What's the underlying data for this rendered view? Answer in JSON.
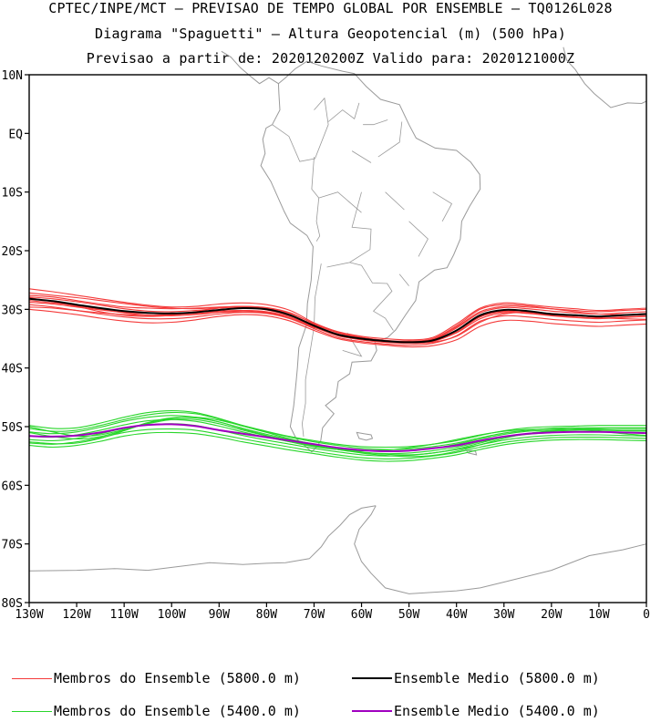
{
  "header": {
    "line1": "CPTEC/INPE/MCT – PREVISAO DE TEMPO GLOBAL POR ENSEMBLE – TQ0126L028",
    "line2": "Diagrama \"Spaguetti\" – Altura Geopotencial (m) (500 hPa)",
    "line3": "Previsao a partir de: 2020120200Z  Valido para: 2020121000Z"
  },
  "map": {
    "lat_labels": [
      "10N",
      "EQ",
      "10S",
      "20S",
      "30S",
      "40S",
      "50S",
      "60S",
      "70S",
      "80S"
    ],
    "lat_values": [
      10,
      0,
      -10,
      -20,
      -30,
      -40,
      -50,
      -60,
      -70,
      -80
    ],
    "lon_labels": [
      "130W",
      "120W",
      "110W",
      "100W",
      "90W",
      "80W",
      "70W",
      "60W",
      "50W",
      "40W",
      "30W",
      "20W",
      "10W",
      "0"
    ],
    "lon_values": [
      -130,
      -120,
      -110,
      -100,
      -90,
      -80,
      -70,
      -60,
      -50,
      -40,
      -30,
      -20,
      -10,
      0
    ],
    "xlim": [
      -130,
      0
    ],
    "ylim": [
      -80,
      10
    ],
    "coast_color": "#9a9a9a"
  },
  "chart_data": {
    "type": "line",
    "x": [
      -130,
      -125,
      -120,
      -115,
      -110,
      -105,
      -100,
      -95,
      -90,
      -85,
      -80,
      -75,
      -70,
      -65,
      -60,
      -55,
      -50,
      -45,
      -40,
      -35,
      -30,
      -25,
      -20,
      -15,
      -10,
      -5,
      0
    ],
    "series": [
      {
        "name": "Ensemble Medio (5800.0 m)",
        "color": "#000000",
        "values": [
          -28.2,
          -28.6,
          -29.2,
          -29.8,
          -30.3,
          -30.6,
          -30.7,
          -30.5,
          -30.1,
          -29.8,
          -30.0,
          -31.0,
          -32.8,
          -34.3,
          -35.0,
          -35.4,
          -35.6,
          -35.3,
          -33.6,
          -31.0,
          -30.1,
          -30.3,
          -30.8,
          -31.0,
          -31.2,
          -31.0,
          -30.8
        ]
      },
      {
        "name": "Ensemble Medio (5400.0 m)",
        "color": "#a000c0",
        "values": [
          -51.6,
          -51.7,
          -51.5,
          -51.0,
          -50.2,
          -49.7,
          -49.6,
          -49.9,
          -50.6,
          -51.2,
          -51.8,
          -52.4,
          -53.0,
          -53.6,
          -54.0,
          -54.2,
          -54.1,
          -53.7,
          -53.2,
          -52.4,
          -51.7,
          -51.2,
          -51.0,
          -50.9,
          -50.9,
          -51.0,
          -51.1
        ]
      }
    ],
    "member_groups": [
      {
        "name": "Membros do Ensemble (5800.0 m)",
        "color": "#f43a3a",
        "members": [
          [
            -26.5,
            -27.0,
            -27.6,
            -28.2,
            -28.8,
            -29.3,
            -29.6,
            -29.5,
            -29.1,
            -28.9,
            -29.2,
            -30.2,
            -32.3,
            -33.8,
            -34.6,
            -35.0,
            -35.2,
            -34.8,
            -32.5,
            -29.8,
            -28.9,
            -29.2,
            -29.6,
            -29.9,
            -30.2,
            -30.0,
            -29.8
          ],
          [
            -27.2,
            -27.6,
            -28.0,
            -28.5,
            -29.0,
            -29.5,
            -29.8,
            -29.9,
            -29.7,
            -29.5,
            -29.8,
            -30.7,
            -32.4,
            -33.9,
            -34.8,
            -35.3,
            -35.5,
            -35.1,
            -33.0,
            -30.4,
            -29.5,
            -29.6,
            -29.9,
            -30.2,
            -30.4,
            -30.2,
            -30.0
          ],
          [
            -27.9,
            -28.2,
            -28.7,
            -29.3,
            -29.9,
            -30.3,
            -30.4,
            -30.2,
            -29.8,
            -29.6,
            -29.9,
            -30.9,
            -32.7,
            -34.2,
            -35.0,
            -35.4,
            -35.6,
            -35.2,
            -33.2,
            -30.6,
            -29.7,
            -29.9,
            -30.3,
            -30.6,
            -30.8,
            -30.6,
            -30.4
          ],
          [
            -28.5,
            -28.9,
            -29.4,
            -30.0,
            -30.6,
            -31.0,
            -31.1,
            -30.9,
            -30.5,
            -30.2,
            -30.4,
            -31.3,
            -33.0,
            -34.5,
            -35.2,
            -35.6,
            -35.8,
            -35.5,
            -33.9,
            -31.3,
            -30.4,
            -30.6,
            -31.0,
            -31.3,
            -31.5,
            -31.3,
            -31.1
          ],
          [
            -29.2,
            -29.6,
            -30.2,
            -30.8,
            -31.3,
            -31.6,
            -31.6,
            -31.3,
            -30.8,
            -30.5,
            -30.7,
            -31.6,
            -33.3,
            -34.8,
            -35.5,
            -35.9,
            -36.1,
            -35.8,
            -34.5,
            -32.0,
            -31.1,
            -31.3,
            -31.7,
            -32.0,
            -32.2,
            -32.0,
            -31.8
          ],
          [
            -30.0,
            -30.4,
            -30.9,
            -31.5,
            -32.0,
            -32.3,
            -32.2,
            -31.8,
            -31.2,
            -30.9,
            -31.1,
            -32.0,
            -33.6,
            -35.0,
            -35.7,
            -36.1,
            -36.4,
            -36.2,
            -35.2,
            -32.9,
            -31.9,
            -32.0,
            -32.4,
            -32.7,
            -32.9,
            -32.7,
            -32.5
          ],
          [
            -28.0,
            -28.7,
            -29.5,
            -30.4,
            -31.0,
            -31.2,
            -31.0,
            -30.4,
            -29.8,
            -29.6,
            -30.1,
            -31.1,
            -32.6,
            -33.9,
            -34.8,
            -35.3,
            -35.7,
            -35.6,
            -34.6,
            -32.2,
            -30.8,
            -30.5,
            -30.7,
            -31.0,
            -31.4,
            -31.6,
            -31.7
          ],
          [
            -27.6,
            -27.9,
            -28.5,
            -29.1,
            -29.6,
            -29.8,
            -29.9,
            -29.8,
            -29.6,
            -29.5,
            -29.7,
            -30.6,
            -32.5,
            -34.0,
            -34.9,
            -35.3,
            -35.4,
            -35.0,
            -32.8,
            -30.0,
            -29.2,
            -29.4,
            -29.9,
            -30.4,
            -30.8,
            -30.9,
            -30.9
          ],
          [
            -28.8,
            -29.1,
            -29.6,
            -30.1,
            -30.5,
            -30.7,
            -30.7,
            -30.5,
            -30.3,
            -30.2,
            -30.5,
            -31.5,
            -33.0,
            -34.3,
            -35.1,
            -35.5,
            -35.6,
            -35.3,
            -33.6,
            -31.2,
            -30.3,
            -30.4,
            -30.8,
            -31.1,
            -31.2,
            -31.0,
            -30.7
          ],
          [
            -29.6,
            -29.8,
            -30.2,
            -30.6,
            -30.9,
            -31.0,
            -30.9,
            -30.7,
            -30.5,
            -30.4,
            -30.6,
            -31.6,
            -33.1,
            -34.4,
            -35.2,
            -35.6,
            -35.7,
            -35.4,
            -34.0,
            -31.6,
            -30.6,
            -30.7,
            -31.1,
            -31.4,
            -31.6,
            -31.4,
            -31.2
          ]
        ]
      },
      {
        "name": "Membros do Ensemble (5400.0 m)",
        "color": "#29d62b",
        "members": [
          [
            -49.8,
            -50.3,
            -50.2,
            -49.4,
            -48.4,
            -47.6,
            -47.3,
            -47.6,
            -48.6,
            -49.8,
            -50.8,
            -51.7,
            -52.4,
            -53.0,
            -53.4,
            -53.5,
            -53.4,
            -53.0,
            -52.4,
            -51.5,
            -50.7,
            -50.2,
            -50.0,
            -49.9,
            -49.8,
            -49.8,
            -49.8
          ],
          [
            -50.3,
            -50.8,
            -50.6,
            -49.8,
            -48.8,
            -48.0,
            -47.6,
            -47.8,
            -48.7,
            -49.9,
            -50.9,
            -51.8,
            -52.6,
            -53.2,
            -53.7,
            -53.9,
            -53.8,
            -53.4,
            -52.8,
            -51.9,
            -51.1,
            -50.6,
            -50.3,
            -50.2,
            -50.2,
            -50.2,
            -50.2
          ],
          [
            -50.9,
            -51.2,
            -50.9,
            -50.1,
            -49.1,
            -48.4,
            -48.1,
            -48.4,
            -49.2,
            -50.3,
            -51.3,
            -52.2,
            -53.0,
            -53.6,
            -54.0,
            -54.2,
            -54.1,
            -53.7,
            -53.0,
            -52.1,
            -51.3,
            -50.8,
            -50.6,
            -50.5,
            -50.5,
            -50.6,
            -50.6
          ],
          [
            -51.6,
            -51.8,
            -51.4,
            -50.6,
            -49.7,
            -49.0,
            -48.8,
            -49.1,
            -49.9,
            -50.9,
            -51.8,
            -52.6,
            -53.3,
            -53.9,
            -54.4,
            -54.6,
            -54.5,
            -54.1,
            -53.5,
            -52.6,
            -51.8,
            -51.3,
            -51.0,
            -50.9,
            -50.9,
            -51.0,
            -51.1
          ],
          [
            -52.2,
            -52.4,
            -52.0,
            -51.2,
            -50.3,
            -49.7,
            -49.5,
            -49.8,
            -50.6,
            -51.5,
            -52.3,
            -53.0,
            -53.7,
            -54.3,
            -54.8,
            -55.0,
            -54.9,
            -54.5,
            -53.9,
            -53.1,
            -52.3,
            -51.8,
            -51.5,
            -51.4,
            -51.4,
            -51.5,
            -51.6
          ],
          [
            -52.8,
            -53.0,
            -52.6,
            -51.9,
            -51.0,
            -50.5,
            -50.4,
            -50.6,
            -51.3,
            -52.1,
            -52.8,
            -53.5,
            -54.2,
            -54.8,
            -55.3,
            -55.5,
            -55.4,
            -55.0,
            -54.4,
            -53.5,
            -52.7,
            -52.2,
            -51.9,
            -51.8,
            -51.8,
            -51.9,
            -52.0
          ],
          [
            -53.2,
            -53.5,
            -53.2,
            -52.5,
            -51.6,
            -51.1,
            -51.0,
            -51.2,
            -51.8,
            -52.6,
            -53.3,
            -54.0,
            -54.6,
            -55.2,
            -55.7,
            -55.9,
            -55.8,
            -55.4,
            -54.8,
            -53.9,
            -53.1,
            -52.6,
            -52.3,
            -52.2,
            -52.2,
            -52.3,
            -52.4
          ],
          [
            -50.0,
            -50.9,
            -51.6,
            -51.4,
            -50.5,
            -49.5,
            -48.8,
            -48.8,
            -49.5,
            -50.6,
            -51.6,
            -52.6,
            -53.4,
            -53.9,
            -54.1,
            -54.0,
            -53.6,
            -53.0,
            -52.2,
            -51.4,
            -50.8,
            -50.5,
            -50.4,
            -50.5,
            -50.8,
            -51.2,
            -51.5
          ],
          [
            -51.0,
            -51.7,
            -52.1,
            -51.7,
            -50.6,
            -49.3,
            -48.5,
            -48.5,
            -49.2,
            -50.4,
            -51.5,
            -52.4,
            -53.2,
            -53.9,
            -54.5,
            -54.9,
            -55.1,
            -54.9,
            -54.2,
            -53.1,
            -52.0,
            -51.2,
            -50.7,
            -50.4,
            -50.3,
            -50.3,
            -50.3
          ],
          [
            -52.6,
            -52.9,
            -52.8,
            -52.0,
            -50.7,
            -49.4,
            -48.6,
            -48.4,
            -48.9,
            -49.9,
            -51.0,
            -52.1,
            -53.0,
            -53.7,
            -54.3,
            -54.7,
            -54.8,
            -54.5,
            -53.8,
            -52.8,
            -51.8,
            -51.2,
            -50.8,
            -50.6,
            -50.6,
            -50.7,
            -50.8
          ]
        ]
      }
    ],
    "xlabel": "",
    "ylabel": ""
  },
  "legend": {
    "items": [
      {
        "label": "Membros do Ensemble (5800.0 m)",
        "color": "#f43a3a",
        "thin": true
      },
      {
        "label": "Ensemble Medio (5800.0 m)",
        "color": "#000000",
        "thin": false
      },
      {
        "label": "Membros do Ensemble (5400.0 m)",
        "color": "#29d62b",
        "thin": true
      },
      {
        "label": "Ensemble Medio (5400.0 m)",
        "color": "#a000c0",
        "thin": false
      }
    ]
  }
}
